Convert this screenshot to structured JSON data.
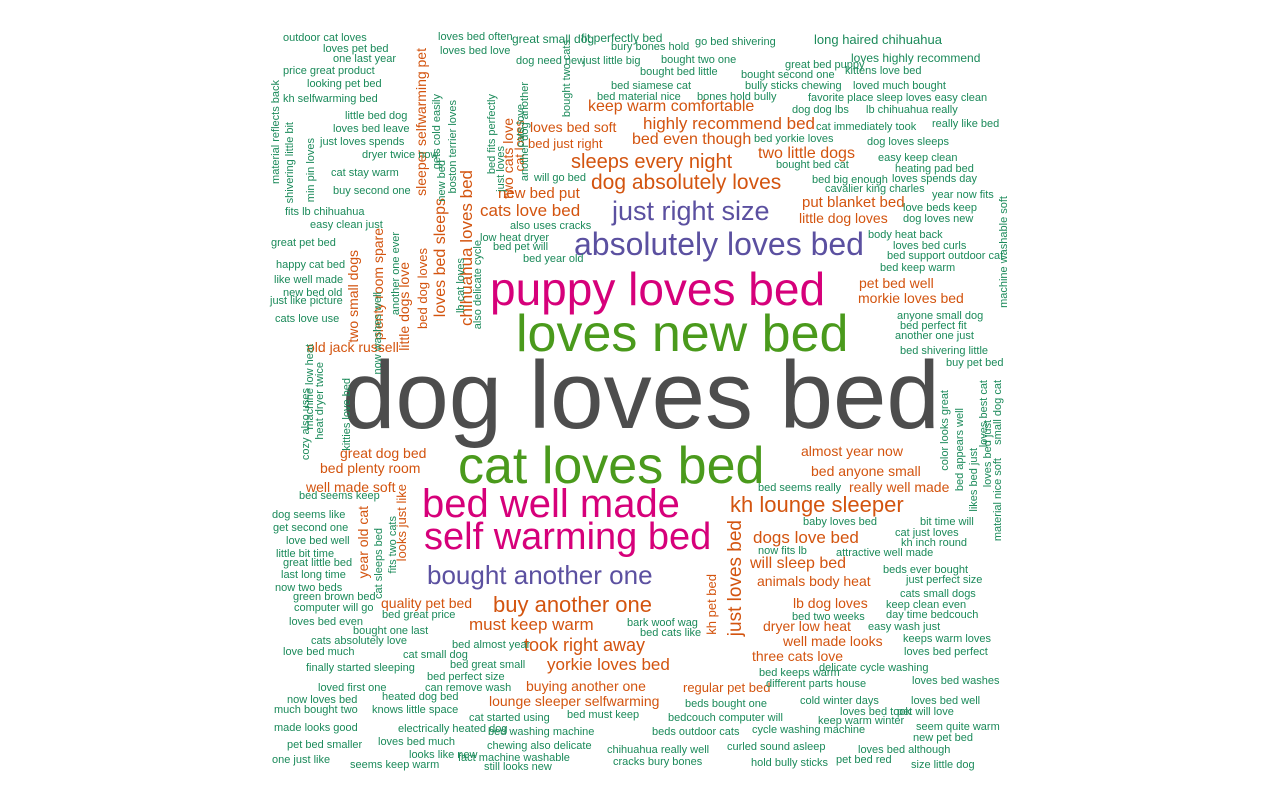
{
  "colors": {
    "dark": "#4d4d4d",
    "pink": "#d6007a",
    "green": "#4a9a1c",
    "purple": "#5b50a0",
    "orange": "#d3540f",
    "teal": "#1b8a5a"
  },
  "words": {
    "w01": "dog loves bed",
    "w02": "loves new bed",
    "w03": "puppy loves bed",
    "w04": "cat loves bed",
    "w05": "bed well made",
    "w06": "self warming bed",
    "w07": "absolutely loves bed",
    "w08": "just right size",
    "w09": "bought another one",
    "w10": "dog absolutely loves",
    "w11": "kh lounge sleeper",
    "w12": "buy another one",
    "w13": "sleeps every night",
    "w14": "highly recommend bed",
    "w15": "bed even though",
    "w16": "keep warm comfortable",
    "w17": "two little dogs",
    "w18": "cats love bed",
    "w19": "new bed put",
    "w20": "put blanket bed",
    "w21": "little dog loves",
    "w22": "pet bed well",
    "w23": "morkie loves bed",
    "w24": "great dog bed",
    "w25": "bed plenty room",
    "w26": "well made soft",
    "w27": "almost year now",
    "w28": "bed anyone small",
    "w29": "really well made",
    "w30": "dogs love bed",
    "w31": "will sleep bed",
    "w32": "animals body heat",
    "w33": "lb dog loves",
    "w34": "quality pet bed",
    "w35": "must keep warm",
    "w36": "took right away",
    "w37": "yorkie loves bed",
    "w38": "dryer low heat",
    "w39": "well made looks",
    "w40": "three cats love",
    "w41": "buying another one",
    "w42": "lounge sleeper selfwarming",
    "w43": "regular pet bed",
    "w44": "old jack russell",
    "w45": "just loves bed",
    "w46": "chihuahua loves bed",
    "w47": "loves bed sleeps",
    "w48": "sleeper selfwarming pet",
    "w49": "two cats love",
    "w50": "loves bed soft",
    "w51": "bed just right",
    "w52": "cat loves",
    "w53": "bed dog loves",
    "w54": "looks just like",
    "w55": "year old cat",
    "w56": "two small dogs",
    "w57": "plenty room spare",
    "w58": "little dogs love",
    "w59": "kh pet bed",
    "w60": "loves bed often",
    "w61": "great small dog",
    "w62": "fit perfectly bed",
    "w63": "bury bones hold",
    "w64": "go bed shivering",
    "w65": "long haired chihuahua",
    "w66": "loves highly recommend",
    "w67": "just little big",
    "w68": "bought two one",
    "w69": "great bed puppy",
    "w70": "kittens love bed",
    "w71": "bought bed little",
    "w72": "bought second one",
    "w73": "loved much bought",
    "w74": "bed siamese cat",
    "w75": "bully sticks chewing",
    "w76": "bed material nice",
    "w77": "bones hold bully",
    "w78": "favorite place sleep loves easy clean",
    "w79": "dog dog lbs",
    "w80": "lb chihuahua really",
    "w81": "cat immediately took",
    "w82": "really like bed",
    "w83": "bed yorkie loves",
    "w84": "dog loves sleeps",
    "w85": "easy keep clean",
    "w86": "heating pad bed",
    "w87": "bought bed cat",
    "w88": "bed big enough",
    "w89": "loves spends day",
    "w90": "cavalier king charles",
    "w91": "year now fits",
    "w92": "love beds keep",
    "w93": "dog loves new",
    "w94": "body heat back",
    "w95": "loves bed curls",
    "w96": "bed support outdoor cat",
    "w97": "bed keep warm",
    "w98": "machine washable soft",
    "w99": "anyone small dog",
    "w100": "bed perfect fit",
    "w101": "another one just",
    "w102": "bed shivering little",
    "w103": "buy pet bed",
    "w104": "outdoor cat loves",
    "w105": "loves pet bed",
    "w106": "one last year",
    "w107": "price great product",
    "w108": "looking pet bed",
    "w109": "kh selfwarming bed",
    "w110": "little bed dog",
    "w111": "loves bed leave",
    "w112": "just loves spends",
    "w113": "dryer twice now",
    "w114": "cat stay warm",
    "w115": "buy second one",
    "w116": "fits lb chihuahua",
    "w117": "easy clean just",
    "w118": "great pet bed",
    "w119": "happy cat bed",
    "w120": "like well made",
    "w121": "new bed old",
    "w122": "just like picture",
    "w123": "cats love use",
    "w124": "bed seems keep",
    "w125": "dog seems like",
    "w126": "get second one",
    "w127": "love bed well",
    "w128": "little bit time",
    "w129": "great little bed",
    "w130": "last long time",
    "w131": "now two beds",
    "w132": "green brown bed",
    "w133": "computer will go",
    "w134": "loves bed even",
    "w135": "bought one last",
    "w136": "cats absolutely love",
    "w137": "love bed much",
    "w138": "cat small dog",
    "w139": "finally started sleeping",
    "w140": "loved first one",
    "w141": "now loves bed",
    "w142": "much bought two",
    "w143": "made looks good",
    "w144": "pet bed smaller",
    "w145": "one just like",
    "w146": "seems keep warm",
    "w147": "heated dog bed",
    "w148": "knows little space",
    "w149": "loves bed much",
    "w150": "electrically heated dog",
    "w151": "bed great price",
    "w152": "bed almost year",
    "w153": "bed great small",
    "w154": "bed perfect size",
    "w155": "can remove wash",
    "w156": "cat started using",
    "w157": "bed washing machine",
    "w158": "chewing also delicate",
    "w159": "fact machine washable",
    "w160": "still looks new",
    "w161": "looks like new",
    "w162": "bed must keep",
    "w163": "beds outdoor cats",
    "w164": "bedcouch computer will",
    "w165": "beds bought one",
    "w166": "chihuahua really well",
    "w167": "cracks bury bones",
    "w168": "cycle washing machine",
    "w169": "curled sound asleep",
    "w170": "hold bully sticks",
    "w171": "pet bed red",
    "w172": "loves bed although",
    "w173": "size little dog",
    "w174": "new pet bed",
    "w175": "seem quite warm",
    "w176": "pet will love",
    "w177": "loves bed took",
    "w178": "keep warm winter",
    "w179": "cold winter days",
    "w180": "different parts house",
    "w181": "bed keeps warm",
    "w182": "delicate cycle washing",
    "w183": "loves bed perfect",
    "w184": "keeps warm loves",
    "w185": "easy wash just",
    "w186": "day time bedcouch",
    "w187": "keep clean even",
    "w188": "cats small dogs",
    "w189": "bed two weeks",
    "w190": "just perfect size",
    "w191": "beds ever bought",
    "w192": "attractive well made",
    "w193": "kh inch round",
    "w194": "cat just loves",
    "w195": "bit time will",
    "w196": "baby loves bed",
    "w197": "bed seems really",
    "w198": "now fits lb",
    "w199": "bark woof wag",
    "w200": "bed cats like",
    "w201": "loves bed washes",
    "w202": "loves bed well",
    "w203": "cats love",
    "w204": "new bed",
    "w205": "just loves",
    "w206": "also uses cracks",
    "w207": "low heat dryer",
    "w208": "bed pet will",
    "w209": "bed year old",
    "w210": "will go bed",
    "w211": "dog need new",
    "w212": "loves bed love",
    "w213": "boston terrier loves",
    "w214": "gets cold easily",
    "w215": "material reflects back",
    "w216": "shivering little bit",
    "w217": "min pin loves",
    "w218": "kitties love bed",
    "w219": "cozy also uses",
    "w220": "machine low heat",
    "w221": "heat dryer twice",
    "w222": "another one ever",
    "w223": "now washes well",
    "w224": "lb cat loves",
    "w225": "also delicate cycle",
    "w226": "fits two cats",
    "w227": "cat sleeps bed",
    "w228": "bought two cats",
    "w229": "bed fits perfectly",
    "w230": "another dog another",
    "w231": "color looks great",
    "w232": "bed appears well",
    "w233": "likes bed just",
    "w234": "loves bed just",
    "w235": "material nice soft",
    "w236": "loves best cat",
    "w237": "small dog cat"
  }
}
